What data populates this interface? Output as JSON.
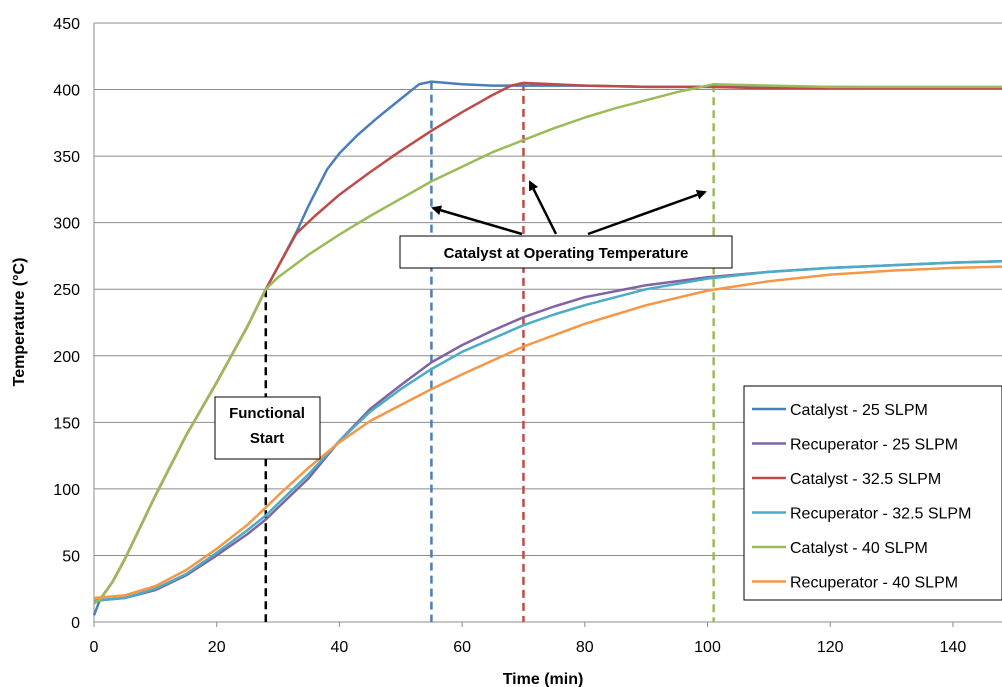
{
  "chart_data": {
    "type": "line",
    "xlabel": "Time (min)",
    "ylabel": "Temperature (°C)",
    "xlim": [
      0,
      148
    ],
    "ylim": [
      0,
      450
    ],
    "xticks": [
      0,
      20,
      40,
      60,
      80,
      100,
      120,
      140
    ],
    "yticks": [
      0,
      50,
      100,
      150,
      200,
      250,
      300,
      350,
      400,
      450
    ],
    "grid": "horizontal",
    "legend_position": "right",
    "series": [
      {
        "name": "Catalyst - 25 SLPM",
        "color": "#4a7ebb",
        "x": [
          0,
          1,
          3,
          5,
          10,
          15,
          20,
          25,
          28,
          30,
          33,
          35,
          38,
          40,
          43,
          46,
          50,
          53,
          55,
          60,
          65,
          70,
          80,
          90,
          100,
          120,
          140,
          148
        ],
        "y": [
          5,
          17,
          30,
          47,
          95,
          140,
          180,
          222,
          250,
          267,
          293,
          313,
          340,
          352,
          366,
          378,
          393,
          404,
          406,
          404,
          403,
          403,
          403,
          402,
          402,
          402,
          401,
          401
        ]
      },
      {
        "name": "Recuperator - 25 SLPM",
        "color": "#8064a2",
        "x": [
          0,
          5,
          10,
          15,
          20,
          25,
          28,
          30,
          35,
          40,
          45,
          50,
          55,
          60,
          65,
          70,
          75,
          80,
          90,
          100,
          110,
          120,
          130,
          140,
          148
        ],
        "y": [
          16,
          18,
          24,
          35,
          50,
          66,
          77,
          86,
          108,
          136,
          160,
          178,
          195,
          208,
          219,
          229,
          237,
          244,
          253,
          259,
          263,
          266,
          268,
          270,
          271
        ]
      },
      {
        "name": "Catalyst - 32.5 SLPM",
        "color": "#be4b48",
        "x": [
          0,
          1,
          3,
          5,
          10,
          15,
          20,
          25,
          28,
          30,
          33,
          36,
          40,
          45,
          50,
          55,
          60,
          65,
          68,
          70,
          75,
          80,
          90,
          100,
          110,
          120,
          130,
          140,
          148
        ],
        "y": [
          14,
          17,
          30,
          47,
          95,
          140,
          180,
          222,
          250,
          267,
          292,
          305,
          321,
          338,
          354,
          369,
          383,
          396,
          403,
          405,
          404,
          403,
          402,
          402,
          401,
          401,
          401,
          401,
          401
        ]
      },
      {
        "name": "Recuperator - 32.5 SLPM",
        "color": "#4bacc6",
        "x": [
          0,
          5,
          10,
          15,
          20,
          25,
          28,
          30,
          35,
          40,
          45,
          50,
          55,
          60,
          65,
          70,
          75,
          80,
          90,
          100,
          110,
          120,
          130,
          140,
          148
        ],
        "y": [
          16,
          18,
          25,
          36,
          52,
          69,
          80,
          89,
          111,
          136,
          158,
          175,
          190,
          203,
          213,
          223,
          231,
          238,
          250,
          258,
          263,
          266,
          268,
          270,
          271
        ]
      },
      {
        "name": "Catalyst - 40 SLPM",
        "color": "#9bbb59",
        "x": [
          0,
          1,
          3,
          5,
          10,
          15,
          20,
          25,
          28,
          30,
          35,
          40,
          45,
          50,
          55,
          60,
          65,
          70,
          75,
          80,
          85,
          90,
          95,
          100,
          101,
          110,
          120,
          130,
          140,
          148
        ],
        "y": [
          14,
          17,
          30,
          47,
          95,
          140,
          180,
          222,
          250,
          259,
          276,
          291,
          305,
          318,
          331,
          342,
          353,
          362,
          371,
          379,
          386,
          392,
          398,
          403,
          404,
          403,
          402,
          402,
          402,
          402
        ]
      },
      {
        "name": "Recuperator - 40 SLPM",
        "color": "#f79646",
        "x": [
          0,
          5,
          10,
          15,
          20,
          25,
          28,
          30,
          35,
          40,
          45,
          50,
          55,
          60,
          70,
          80,
          90,
          100,
          110,
          120,
          130,
          140,
          148
        ],
        "y": [
          18,
          20,
          27,
          39,
          55,
          73,
          86,
          95,
          116,
          135,
          151,
          163,
          175,
          186,
          207,
          224,
          238,
          249,
          256,
          261,
          264,
          266,
          267
        ]
      }
    ],
    "vlines": [
      {
        "x": 28,
        "y_top": 250,
        "color": "#000000"
      },
      {
        "x": 55,
        "y_top": 406,
        "color": "#4a7ebb"
      },
      {
        "x": 70,
        "y_top": 405,
        "color": "#be4b48"
      },
      {
        "x": 101,
        "y_top": 404,
        "color": "#9bbb59"
      }
    ],
    "annotations": [
      {
        "id": "functional-start",
        "lines": [
          "Functional",
          "Start"
        ]
      },
      {
        "id": "operating-temp",
        "text": "Catalyst at Operating Temperature"
      }
    ]
  }
}
